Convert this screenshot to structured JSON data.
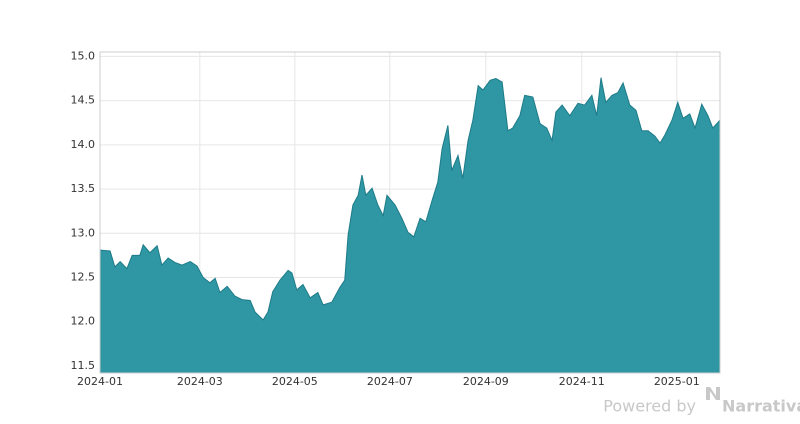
{
  "chart_data": {
    "type": "area",
    "color": "#2f97a4",
    "line_color": "#1e7b88",
    "grid": true,
    "x": [
      0,
      0.21,
      0.31,
      0.42,
      0.56,
      0.67,
      0.83,
      0.9,
      1.04,
      1.19,
      1.29,
      1.42,
      1.56,
      1.71,
      1.88,
      2.02,
      2.15,
      2.29,
      2.4,
      2.5,
      2.65,
      2.81,
      2.96,
      3.13,
      3.23,
      3.4,
      3.5,
      3.6,
      3.75,
      3.92,
      4,
      4.1,
      4.23,
      4.38,
      4.54,
      4.65,
      4.83,
      5,
      5.1,
      5.17,
      5.27,
      5.38,
      5.46,
      5.54,
      5.67,
      5.79,
      5.9,
      5.98,
      6.15,
      6.29,
      6.42,
      6.54,
      6.67,
      6.79,
      6.92,
      7.04,
      7.13,
      7.25,
      7.33,
      7.46,
      7.56,
      7.67,
      7.77,
      7.88,
      7.98,
      8.13,
      8.25,
      8.38,
      8.5,
      8.6,
      8.75,
      8.85,
      9.02,
      9.17,
      9.31,
      9.42,
      9.5,
      9.63,
      9.79,
      9.96,
      10.1,
      10.25,
      10.35,
      10.44,
      10.54,
      10.67,
      10.79,
      10.9,
      11.04,
      11.17,
      11.29,
      11.42,
      11.56,
      11.67,
      11.77,
      11.92,
      12.04,
      12.15,
      12.29,
      12.4,
      12.54,
      12.67,
      12.77,
      12.92
    ],
    "values": [
      12.81,
      12.8,
      12.62,
      12.68,
      12.6,
      12.75,
      12.75,
      12.87,
      12.78,
      12.86,
      12.64,
      12.72,
      12.67,
      12.64,
      12.68,
      12.63,
      12.5,
      12.44,
      12.49,
      12.33,
      12.4,
      12.29,
      12.25,
      12.24,
      12.11,
      12.02,
      12.11,
      12.34,
      12.47,
      12.58,
      12.55,
      12.36,
      12.42,
      12.27,
      12.33,
      12.19,
      12.22,
      12.39,
      12.47,
      12.98,
      13.32,
      13.43,
      13.66,
      13.43,
      13.51,
      13.32,
      13.2,
      13.43,
      13.32,
      13.17,
      13.01,
      12.96,
      13.17,
      13.13,
      13.37,
      13.58,
      13.96,
      14.22,
      13.71,
      13.88,
      13.62,
      14.05,
      14.28,
      14.67,
      14.62,
      14.73,
      14.75,
      14.71,
      14.16,
      14.19,
      14.33,
      14.56,
      14.54,
      14.24,
      14.19,
      14.05,
      14.37,
      14.45,
      14.33,
      14.47,
      14.45,
      14.56,
      14.33,
      14.76,
      14.48,
      14.56,
      14.59,
      14.7,
      14.45,
      14.39,
      14.16,
      14.16,
      14.1,
      14.02,
      14.11,
      14.28,
      14.48,
      14.3,
      14.35,
      14.19,
      14.46,
      14.33,
      14.19,
      14.28
    ],
    "xlim": [
      0,
      12.92
    ],
    "xticks": [
      {
        "value": 0,
        "label": "2024-01"
      },
      {
        "value": 2.08,
        "label": "2024-03"
      },
      {
        "value": 4.06,
        "label": "2024-05"
      },
      {
        "value": 6.04,
        "label": "2024-07"
      },
      {
        "value": 8.04,
        "label": "2024-09"
      },
      {
        "value": 10.04,
        "label": "2024-11"
      },
      {
        "value": 12.02,
        "label": "2025-01"
      }
    ],
    "ylim": [
      11.42,
      15.05
    ],
    "yticks": [
      11.5,
      {
        "value": 12,
        "label": "12.0"
      },
      12.5,
      {
        "value": 13,
        "label": "13.0"
      },
      13.5,
      {
        "value": 14,
        "label": "14.0"
      },
      14.5,
      {
        "value": 15,
        "label": "15.0"
      }
    ]
  },
  "footer": {
    "text": "Powered by",
    "brand": "Narrativa"
  }
}
